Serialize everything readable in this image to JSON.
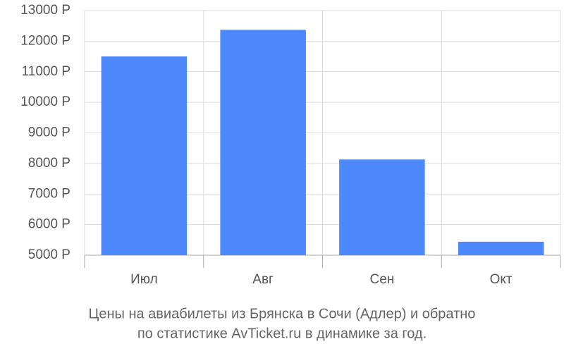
{
  "chart_data": {
    "type": "bar",
    "title": [
      "Цены на авиабилеты из Брянска в Сочи (Адлер) и обратно",
      "по статистике AvTicket.ru в динамике за год."
    ],
    "categories": [
      "Июл",
      "Авг",
      "Сен",
      "Окт"
    ],
    "values": [
      11500,
      12370,
      8130,
      5440
    ],
    "color": "#4d88fd",
    "ylim": [
      5000,
      13000
    ],
    "yticks": [
      {
        "value": 5000,
        "label": "5000 Р"
      },
      {
        "value": 6000,
        "label": "6000 Р"
      },
      {
        "value": 7000,
        "label": "7000 Р"
      },
      {
        "value": 8000,
        "label": "8000 Р"
      },
      {
        "value": 9000,
        "label": "9000 Р"
      },
      {
        "value": 10000,
        "label": "10000 Р"
      },
      {
        "value": 11000,
        "label": "11000 Р"
      },
      {
        "value": 12000,
        "label": "12000 Р"
      },
      {
        "value": 13000,
        "label": "13000 Р"
      }
    ],
    "grid": true
  }
}
